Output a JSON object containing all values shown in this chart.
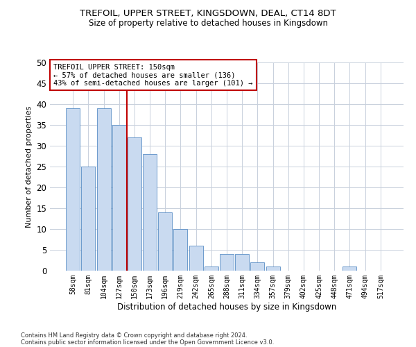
{
  "title1": "TREFOIL, UPPER STREET, KINGSDOWN, DEAL, CT14 8DT",
  "title2": "Size of property relative to detached houses in Kingsdown",
  "xlabel": "Distribution of detached houses by size in Kingsdown",
  "ylabel": "Number of detached properties",
  "categories": [
    "58sqm",
    "81sqm",
    "104sqm",
    "127sqm",
    "150sqm",
    "173sqm",
    "196sqm",
    "219sqm",
    "242sqm",
    "265sqm",
    "288sqm",
    "311sqm",
    "334sqm",
    "357sqm",
    "379sqm",
    "402sqm",
    "425sqm",
    "448sqm",
    "471sqm",
    "494sqm",
    "517sqm"
  ],
  "values": [
    39,
    25,
    39,
    35,
    32,
    28,
    14,
    10,
    6,
    1,
    4,
    4,
    2,
    1,
    0,
    0,
    0,
    0,
    1,
    0,
    0
  ],
  "bar_color": "#c9daf0",
  "bar_edge_color": "#5a8ec5",
  "vline_x_index": 4,
  "vline_color": "#c00000",
  "annotation_line1": "TREFOIL UPPER STREET: 150sqm",
  "annotation_line2": "← 57% of detached houses are smaller (136)",
  "annotation_line3": "43% of semi-detached houses are larger (101) →",
  "annotation_box_color": "#ffffff",
  "annotation_box_edge": "#c00000",
  "ylim": [
    0,
    50
  ],
  "yticks": [
    0,
    5,
    10,
    15,
    20,
    25,
    30,
    35,
    40,
    45,
    50
  ],
  "footer1": "Contains HM Land Registry data © Crown copyright and database right 2024.",
  "footer2": "Contains public sector information licensed under the Open Government Licence v3.0.",
  "background_color": "#ffffff",
  "grid_color": "#c8d0dc"
}
